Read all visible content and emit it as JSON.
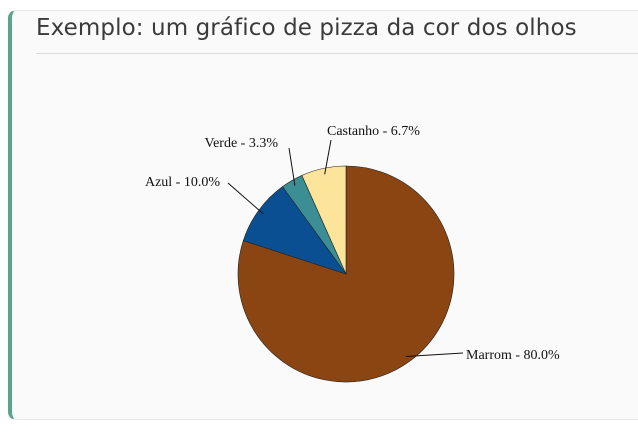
{
  "card": {
    "title": "Exemplo: um gráfico de pizza da cor dos olhos"
  },
  "chart_data": {
    "type": "pie",
    "title": "",
    "start_angle_deg": 0,
    "direction": "clockwise",
    "slices": [
      {
        "label": "Marrom",
        "value": 80.0,
        "display": "Marrom - 80.0%",
        "color": "#8b4513"
      },
      {
        "label": "Azul",
        "value": 10.0,
        "display": "Azul - 10.0%",
        "color": "#0b4f93"
      },
      {
        "label": "Verde",
        "value": 3.3,
        "display": "Verde - 3.3%",
        "color": "#3b8f94"
      },
      {
        "label": "Castanho",
        "value": 6.7,
        "display": "Castanho - 6.7%",
        "color": "#fce49b"
      }
    ]
  }
}
